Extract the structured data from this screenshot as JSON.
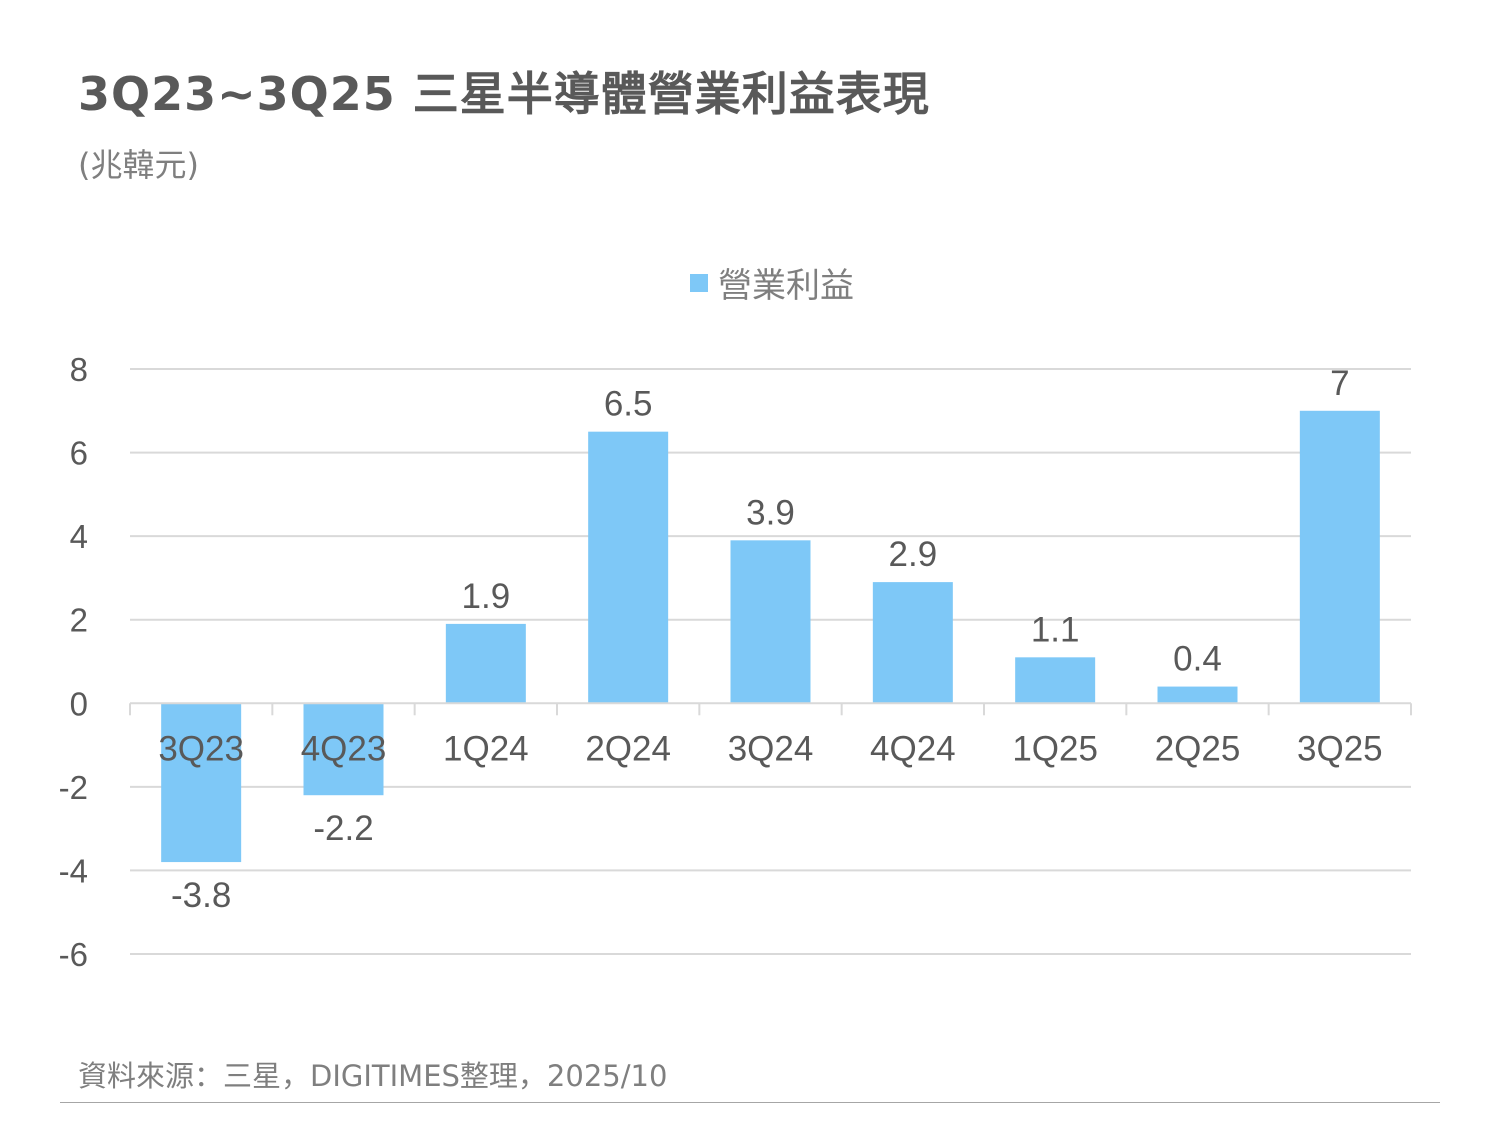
{
  "title": "3Q23~3Q25 三星半導體營業利益表現",
  "unit": "(兆韓元)",
  "source": "資料來源：三星，DIGITIMES整理，2025/10",
  "colors": {
    "bar": "#7ec8f7",
    "grid": "#d9d9d9",
    "text": "#595959",
    "axis": "#d9d9d9"
  },
  "chart_data": {
    "type": "bar",
    "title": "3Q23~3Q25 三星半導體營業利益表現",
    "ylabel": "(兆韓元)",
    "xlabel": "",
    "categories": [
      "3Q23",
      "4Q23",
      "1Q24",
      "2Q24",
      "3Q24",
      "4Q24",
      "1Q25",
      "2Q25",
      "3Q25"
    ],
    "series": [
      {
        "name": "營業利益",
        "values": [
          -3.8,
          -2.2,
          1.9,
          6.5,
          3.9,
          2.9,
          1.1,
          0.4,
          7
        ]
      }
    ],
    "data_labels": [
      "-3.8",
      "-2.2",
      "1.9",
      "6.5",
      "3.9",
      "2.9",
      "1.1",
      "0.4",
      "7"
    ],
    "ylim": [
      -6,
      8
    ],
    "yticks": [
      8,
      6,
      4,
      2,
      0,
      -2,
      -4,
      -6
    ],
    "grid": true,
    "legend": "top-center"
  }
}
